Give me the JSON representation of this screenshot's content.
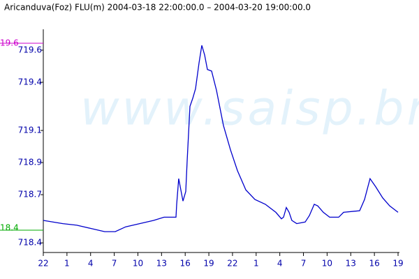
{
  "chart_data": {
    "type": "line",
    "title": "Aricanduva(Foz) FLU(m) 2004-03-18 22:00:00.0 – 2004-03-20 19:00:00.0",
    "watermark": "www.saisp.br",
    "annotations": [
      {
        "text": "19.6",
        "color": "#cc00cc"
      },
      {
        "text": "18.4",
        "color": "#00aa00"
      }
    ],
    "xlim": [
      0,
      45
    ],
    "xticks": [
      {
        "value": 0,
        "label": "22"
      },
      {
        "value": 3,
        "label": "1"
      },
      {
        "value": 6,
        "label": "4"
      },
      {
        "value": 9,
        "label": "7"
      },
      {
        "value": 12,
        "label": "10"
      },
      {
        "value": 15,
        "label": "13"
      },
      {
        "value": 18,
        "label": "16"
      },
      {
        "value": 21,
        "label": "19"
      },
      {
        "value": 24,
        "label": "22"
      },
      {
        "value": 27,
        "label": "1"
      },
      {
        "value": 30,
        "label": "4"
      },
      {
        "value": 33,
        "label": "7"
      },
      {
        "value": 36,
        "label": "10"
      },
      {
        "value": 39,
        "label": "13"
      },
      {
        "value": 42,
        "label": "16"
      },
      {
        "value": 45,
        "label": "19"
      }
    ],
    "ylim": [
      718.34,
      719.73
    ],
    "yticks": [
      718.4,
      718.7,
      718.9,
      719.1,
      719.4,
      719.6
    ],
    "series": [
      {
        "color": "#0000cc",
        "x": [
          0,
          2.48,
          4.25,
          6.02,
          7.79,
          9.12,
          10.45,
          12.22,
          14.0,
          15.32,
          16.83,
          16.92,
          17.18,
          17.72,
          18.07,
          18.25,
          18.6,
          18.96,
          19.31,
          19.75,
          20.11,
          20.46,
          20.82,
          21.35,
          21.97,
          22.85,
          23.74,
          24.63,
          25.69,
          26.84,
          28.17,
          29.5,
          30.21,
          30.47,
          30.83,
          31.18,
          31.53,
          32.15,
          33.22,
          33.75,
          34.37,
          34.81,
          35.52,
          36.32,
          37.47,
          38.09,
          40.13,
          40.75,
          41.45,
          42.16,
          43.05,
          43.94,
          45
        ],
        "values": [
          718.54,
          718.52,
          718.51,
          718.49,
          718.47,
          718.47,
          718.5,
          718.52,
          718.54,
          718.56,
          718.56,
          718.64,
          718.8,
          718.66,
          718.72,
          718.91,
          719.25,
          719.3,
          719.36,
          719.52,
          719.63,
          719.57,
          719.48,
          719.47,
          719.35,
          719.13,
          718.98,
          718.85,
          718.73,
          718.67,
          718.64,
          718.59,
          718.55,
          718.56,
          718.62,
          718.59,
          718.54,
          718.52,
          718.53,
          718.57,
          718.64,
          718.63,
          718.59,
          718.56,
          718.56,
          718.59,
          718.6,
          718.67,
          718.8,
          718.75,
          718.68,
          718.63,
          718.59
        ]
      }
    ]
  }
}
